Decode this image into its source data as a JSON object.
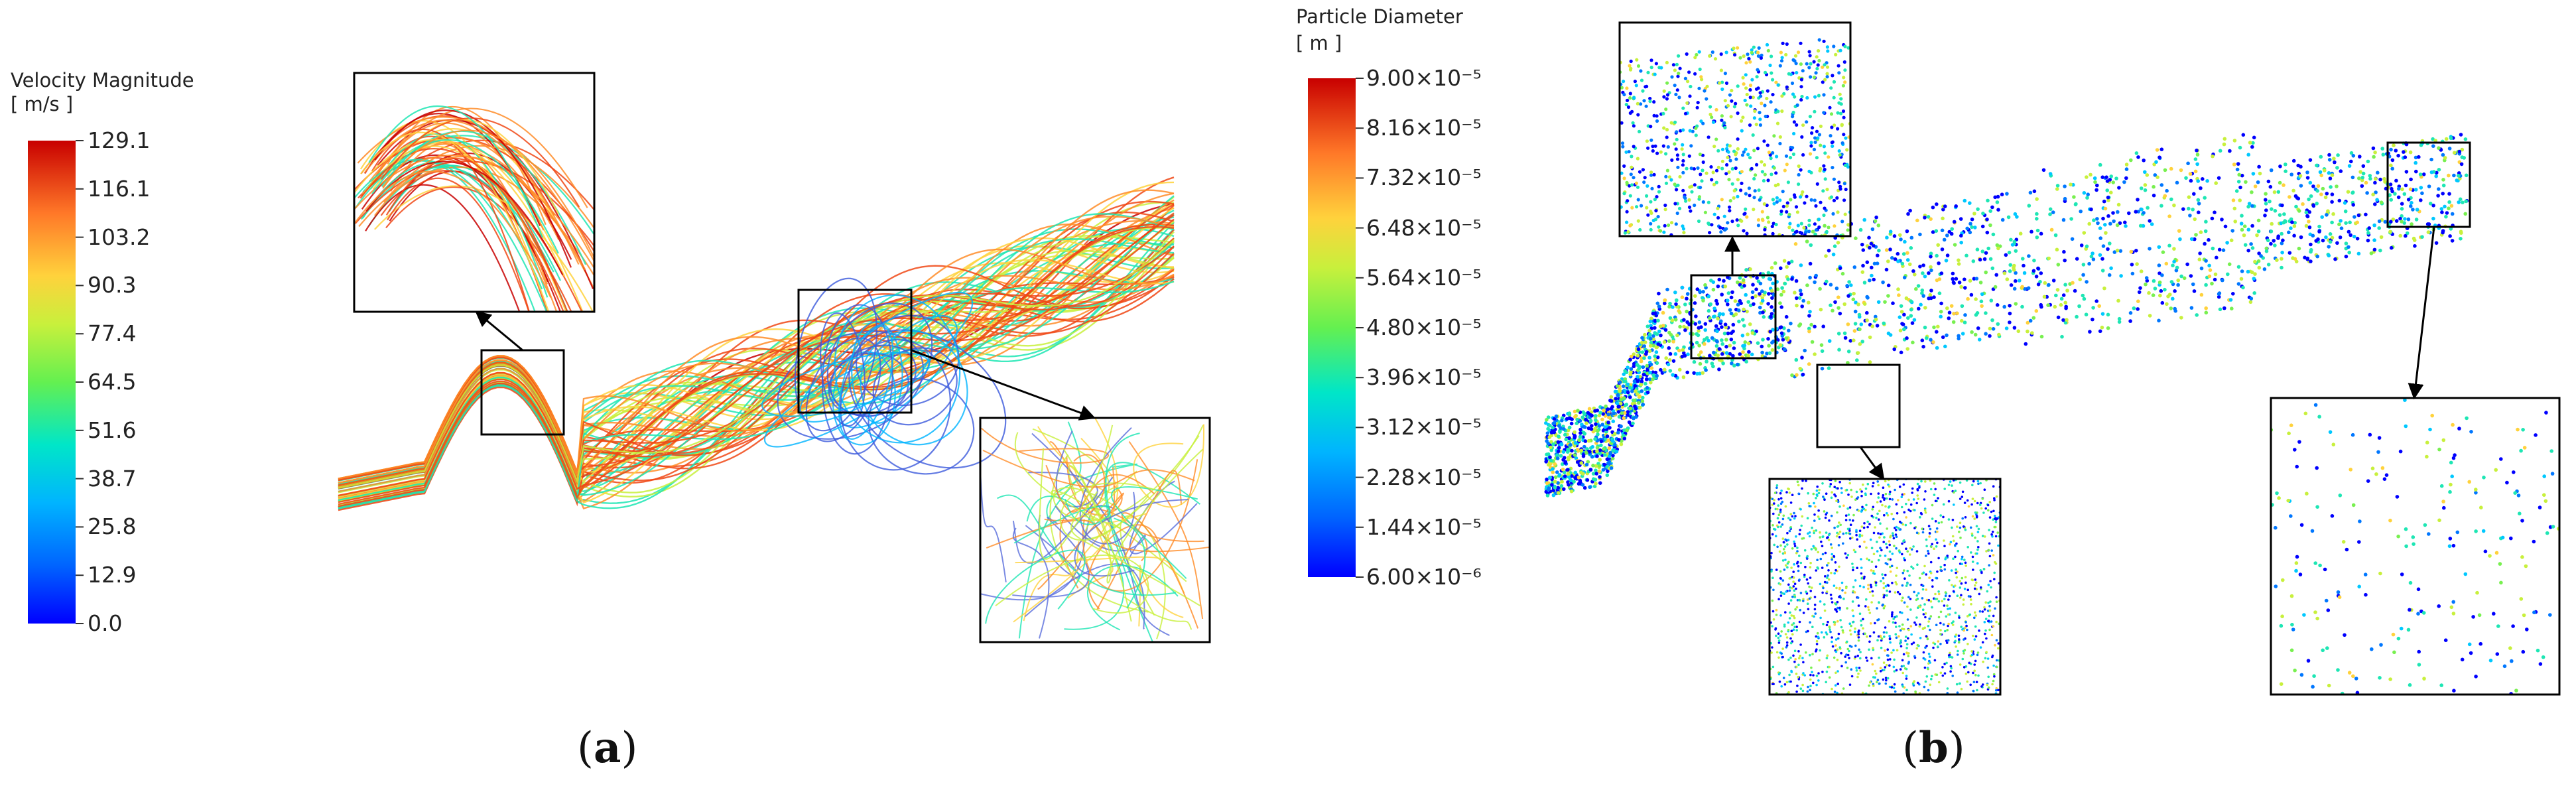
{
  "panel_a": {
    "legend": {
      "title": "Velocity Magnitude",
      "unit": "[ m/s ]",
      "ticks": [
        "129.1",
        "116.1",
        "103.2",
        "90.3",
        "77.4",
        "64.5",
        "51.6",
        "38.7",
        "25.8",
        "12.9",
        "0.0"
      ]
    },
    "caption": {
      "open": "(",
      "letter": "a",
      "close": ")"
    }
  },
  "panel_b": {
    "legend": {
      "title": "Particle Diameter",
      "unit": "[ m ]",
      "ticks": [
        "9.00×10⁻⁵",
        "8.16×10⁻⁵",
        "7.32×10⁻⁵",
        "6.48×10⁻⁵",
        "5.64×10⁻⁵",
        "4.80×10⁻⁵",
        "3.96×10⁻⁵",
        "3.12×10⁻⁵",
        "2.28×10⁻⁵",
        "1.44×10⁻⁵",
        "6.00×10⁻⁶"
      ]
    },
    "caption": {
      "open": "(",
      "letter": "b",
      "close": ")"
    }
  },
  "colormap": [
    "#0000ff",
    "#0077ff",
    "#00c8ff",
    "#1ee6b4",
    "#78f050",
    "#c8f03c",
    "#ffd23c",
    "#ff8c28",
    "#f04614",
    "#c80000"
  ]
}
